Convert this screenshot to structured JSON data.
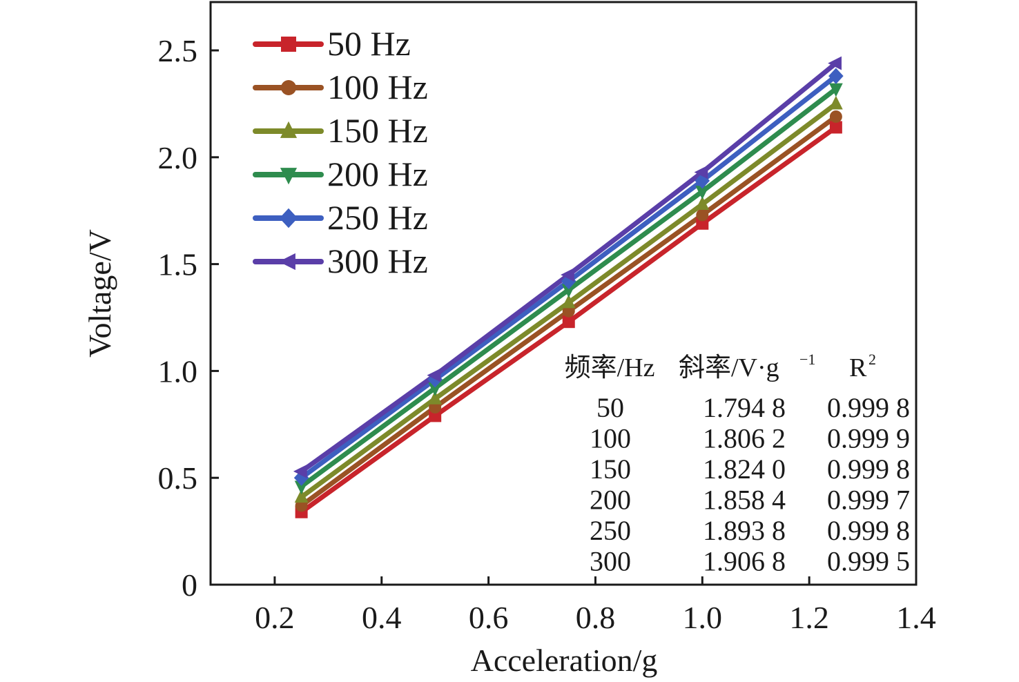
{
  "chart_data": {
    "type": "line",
    "title": "",
    "xlabel": "Acceleration/g",
    "ylabel": "Voltage/V",
    "xlim": [
      0.08,
      1.4
    ],
    "ylim": [
      0,
      2.75
    ],
    "xticks": [
      "0.2",
      "0.4",
      "0.6",
      "0.8",
      "1.0",
      "1.2",
      "1.4"
    ],
    "xtick_values": [
      0.2,
      0.4,
      0.6,
      0.8,
      1.0,
      1.2,
      1.4
    ],
    "yticks": [
      "0",
      "0.5",
      "1.0",
      "1.5",
      "2.0",
      "2.5"
    ],
    "ytick_values": [
      0,
      0.5,
      1.0,
      1.5,
      2.0,
      2.5
    ],
    "grid": false,
    "legend_position": "top-left",
    "x": [
      0.25,
      0.5,
      0.75,
      1.0,
      1.25
    ],
    "series": [
      {
        "name": "50 Hz",
        "color": "#c8242b",
        "marker": "square",
        "values": [
          0.34,
          0.79,
          1.23,
          1.69,
          2.14
        ]
      },
      {
        "name": "100 Hz",
        "color": "#9a5224",
        "marker": "circle",
        "values": [
          0.37,
          0.83,
          1.28,
          1.73,
          2.19
        ]
      },
      {
        "name": "150 Hz",
        "color": "#7d8a2a",
        "marker": "triangle-up",
        "values": [
          0.41,
          0.87,
          1.32,
          1.78,
          2.25
        ]
      },
      {
        "name": "200 Hz",
        "color": "#2e8c4e",
        "marker": "triangle-down",
        "values": [
          0.46,
          0.92,
          1.38,
          1.84,
          2.32
        ]
      },
      {
        "name": "250 Hz",
        "color": "#3d5fc0",
        "marker": "diamond",
        "values": [
          0.5,
          0.96,
          1.42,
          1.89,
          2.38
        ]
      },
      {
        "name": "300 Hz",
        "color": "#5a3ea8",
        "marker": "triangle-left",
        "values": [
          0.53,
          0.98,
          1.45,
          1.93,
          2.44
        ]
      }
    ],
    "annotation_table": {
      "headers": [
        "频率/Hz",
        "斜率/V·g",
        "−1",
        "R",
        "2"
      ],
      "header_freq": "频率/Hz",
      "header_slope": "斜率/V·g",
      "header_slope_sup": "−1",
      "header_r": "R",
      "header_r_sup": "2",
      "rows": [
        {
          "freq": "50",
          "slope": "1.794 8",
          "r2": "0.999 8"
        },
        {
          "freq": "100",
          "slope": "1.806 2",
          "r2": "0.999 9"
        },
        {
          "freq": "150",
          "slope": "1.824 0",
          "r2": "0.999 8"
        },
        {
          "freq": "200",
          "slope": "1.858 4",
          "r2": "0.999 7"
        },
        {
          "freq": "250",
          "slope": "1.893 8",
          "r2": "0.999 8"
        },
        {
          "freq": "300",
          "slope": "1.906 8",
          "r2": "0.999 5"
        }
      ]
    }
  }
}
